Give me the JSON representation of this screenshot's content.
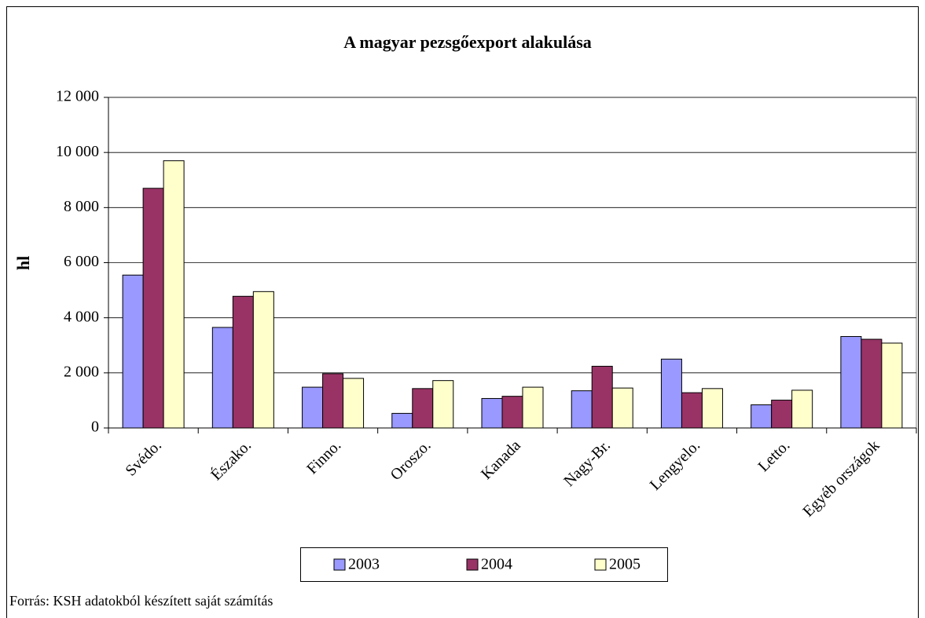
{
  "chart_data": {
    "type": "bar",
    "title": "A magyar pezsgőexport alakulása",
    "y_label": "hl",
    "source": "Forrás: KSH adatokból készített saját számítás",
    "categories": [
      "Svédo.",
      "Észako.",
      "Finno.",
      "Oroszo.",
      "Kanada",
      "Nagy-Br.",
      "Lengyelo.",
      "Letto.",
      "Egyéb országok"
    ],
    "series": [
      {
        "name": "2003",
        "color": "#9999ff",
        "values": [
          5550,
          3650,
          1480,
          530,
          1070,
          1350,
          2500,
          840,
          3320
        ]
      },
      {
        "name": "2004",
        "color": "#993366",
        "values": [
          8700,
          4780,
          1970,
          1430,
          1150,
          2240,
          1280,
          1010,
          3220
        ]
      },
      {
        "name": "2005",
        "color": "#ffffcc",
        "values": [
          9700,
          4950,
          1800,
          1720,
          1480,
          1450,
          1430,
          1370,
          3080
        ]
      }
    ],
    "ylim": [
      0,
      12000
    ],
    "yticks": [
      0,
      {
        "value": 2000,
        "label": "2 000"
      },
      {
        "value": 4000,
        "label": "4 000"
      },
      {
        "value": 6000,
        "label": "6 000"
      },
      {
        "value": 8000,
        "label": "8 000"
      },
      {
        "value": 10000,
        "label": "10 000"
      },
      {
        "value": 12000,
        "label": "12 000"
      }
    ],
    "grid": true,
    "legend": "bottom"
  }
}
